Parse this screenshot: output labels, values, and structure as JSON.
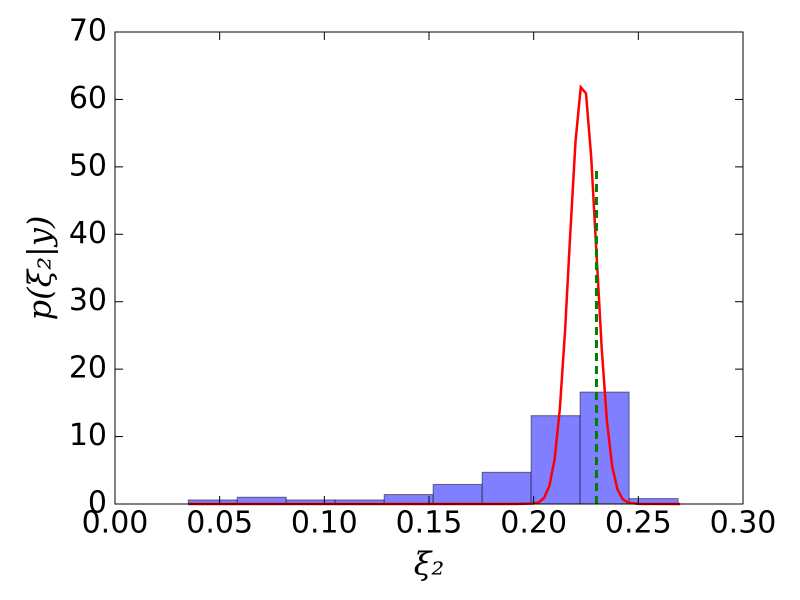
{
  "chart_data": {
    "type": "histogram",
    "xlabel": "ξ₂",
    "ylabel": "p(ξ₂|y)",
    "bins": [
      0.035,
      0.0584,
      0.0818,
      0.1052,
      0.1286,
      0.152,
      0.1754,
      0.1988,
      0.2222,
      0.2456,
      0.269
    ],
    "values": [
      0.6,
      1.0,
      0.6,
      0.6,
      1.4,
      2.9,
      4.7,
      13.1,
      16.6,
      0.8
    ],
    "color": "#7f7fff",
    "xlim": [
      0,
      0.3
    ],
    "ylim": [
      0,
      70
    ],
    "xticks": [
      {
        "value": 0,
        "label": "0.00"
      },
      {
        "value": 0.05,
        "label": "0.05"
      },
      {
        "value": 0.1,
        "label": "0.10"
      },
      {
        "value": 0.15,
        "label": "0.15"
      },
      {
        "value": 0.2,
        "label": "0.20"
      },
      {
        "value": 0.25,
        "label": "0.25"
      },
      {
        "value": 0.3,
        "label": "0.30"
      }
    ],
    "yticks": [
      0,
      10,
      20,
      30,
      40,
      50,
      60,
      70
    ],
    "lines": [
      {
        "color": "#ff0000",
        "dash": false,
        "x": [
          0.035,
          0.1,
          0.19,
          0.2,
          0.2025,
          0.205,
          0.2075,
          0.21,
          0.2125,
          0.215,
          0.2175,
          0.22,
          0.2225,
          0.225,
          0.2275,
          0.23,
          0.2325,
          0.235,
          0.2375,
          0.24,
          0.2425,
          0.245,
          0.25,
          0.27
        ],
        "y": [
          0,
          0,
          0,
          0.07,
          0.27,
          0.92,
          2.67,
          6.62,
          14.09,
          25.7,
          40.2,
          53.8,
          61.8,
          60.9,
          51.4,
          37.2,
          23.1,
          12.3,
          5.6,
          2.18,
          0.73,
          0.21,
          0.02,
          0
        ]
      },
      {
        "color": "#008000",
        "dash": true,
        "x": [
          0.23,
          0.23
        ],
        "y": [
          0,
          50
        ]
      }
    ]
  }
}
